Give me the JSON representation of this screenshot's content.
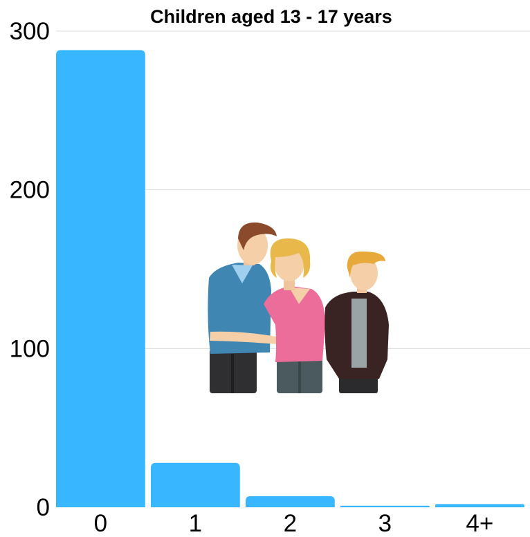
{
  "chart_data": {
    "type": "bar",
    "title": "Children aged 13 - 17 years",
    "categories": [
      "0",
      "1",
      "2",
      "3",
      "4+"
    ],
    "values": [
      288,
      28,
      7,
      1,
      2
    ],
    "ylim": [
      0,
      300
    ],
    "yticks": [
      0,
      100,
      200,
      300
    ],
    "grid": true,
    "colors": {
      "bar": "#38b6ff",
      "grid": "#dcdcdc"
    }
  },
  "illustration": {
    "icon": "family-illustration-icon"
  }
}
